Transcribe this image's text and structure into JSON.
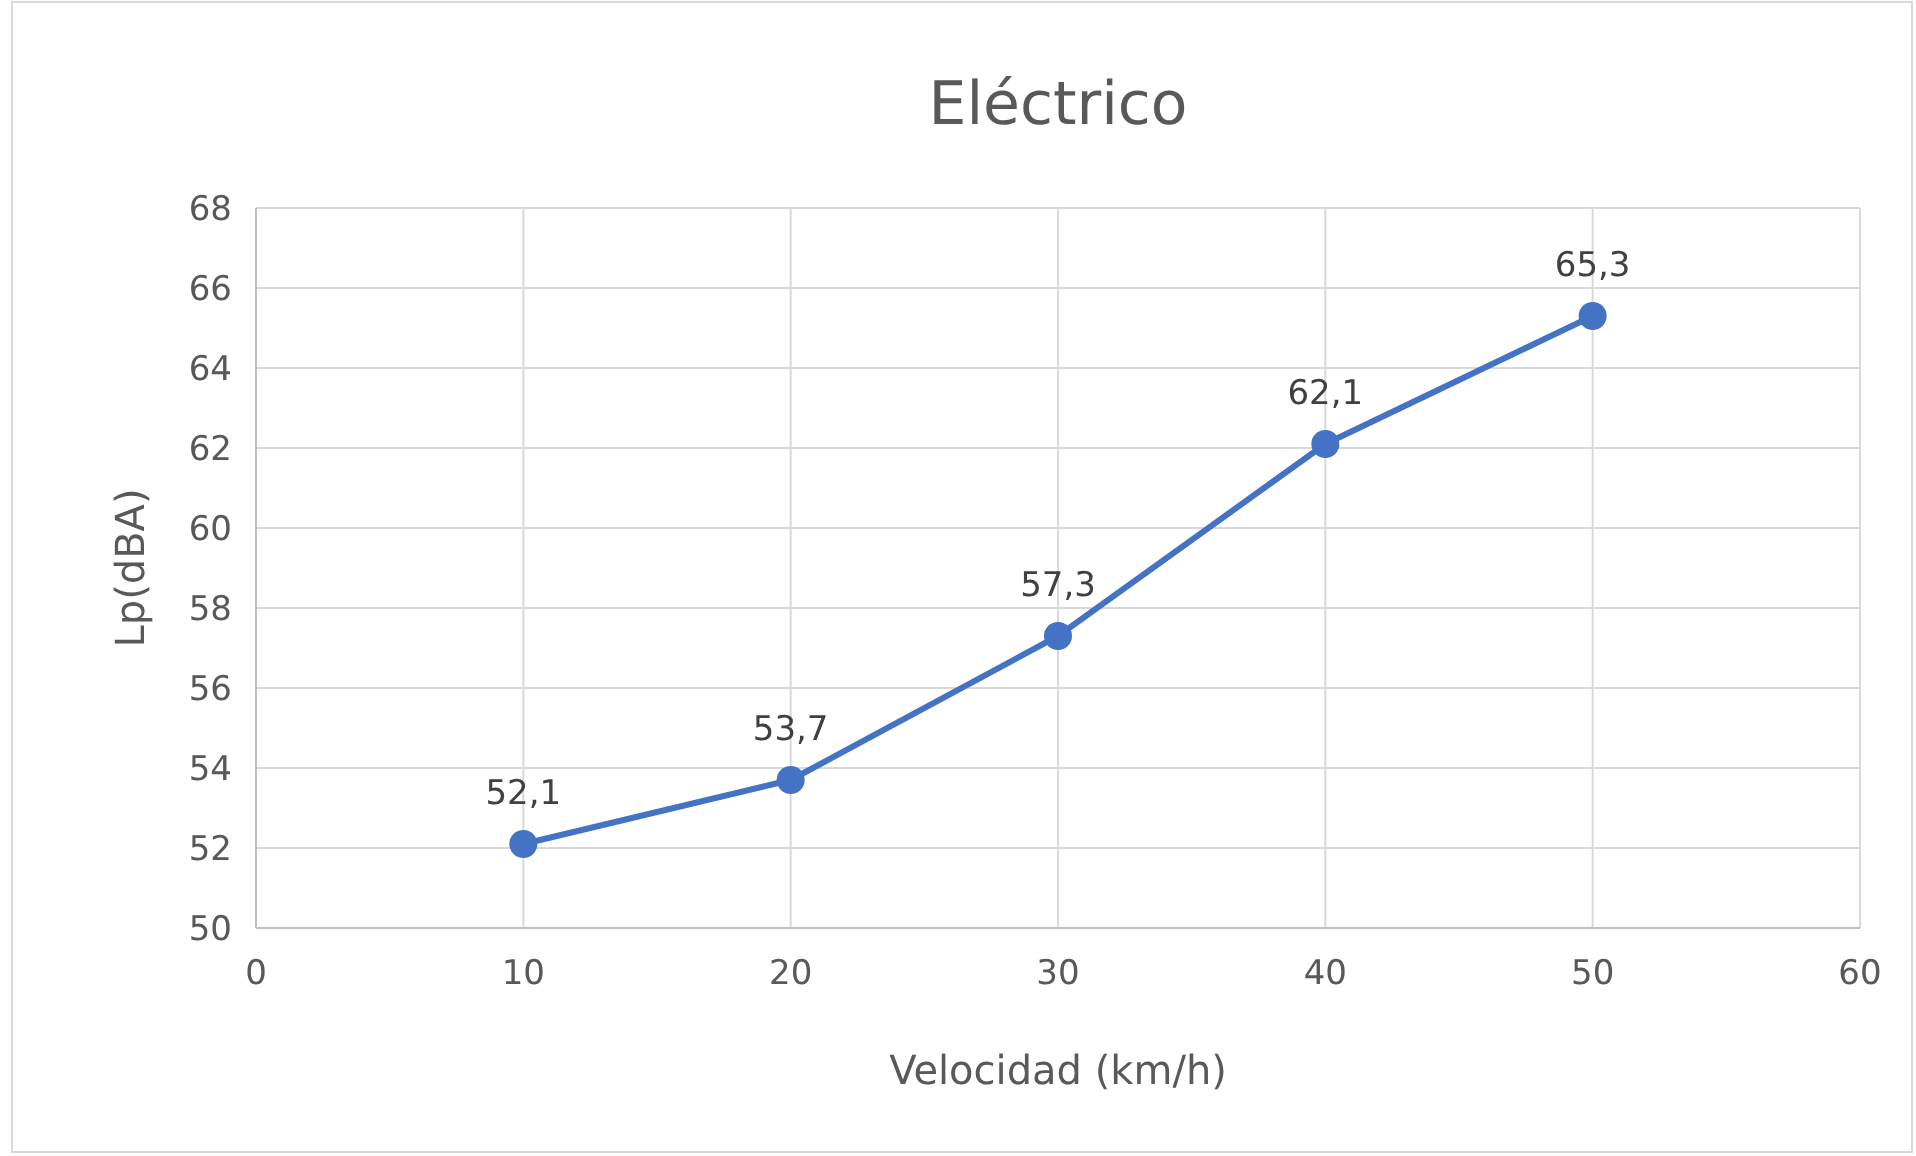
{
  "chart_data": {
    "type": "line",
    "title": "Eléctrico",
    "xlabel": "Velocidad (km/h)",
    "ylabel": "Lp(dBA)",
    "x": [
      10,
      20,
      30,
      40,
      50
    ],
    "series": [
      {
        "color": "#4472c4",
        "values": [
          52.1,
          53.7,
          57.3,
          62.1,
          65.3
        ],
        "value_labels": [
          "52,1",
          "53,7",
          "57,3",
          "62,1",
          "65,3"
        ]
      }
    ],
    "xlim": [
      0,
      60
    ],
    "xticks": [
      0,
      10,
      20,
      30,
      40,
      50,
      60
    ],
    "ylim": [
      50,
      68
    ],
    "yticks": [
      50,
      52,
      54,
      56,
      58,
      60,
      62,
      64,
      66,
      68
    ],
    "grid": true,
    "marker": "circle",
    "line_style": "solid"
  }
}
